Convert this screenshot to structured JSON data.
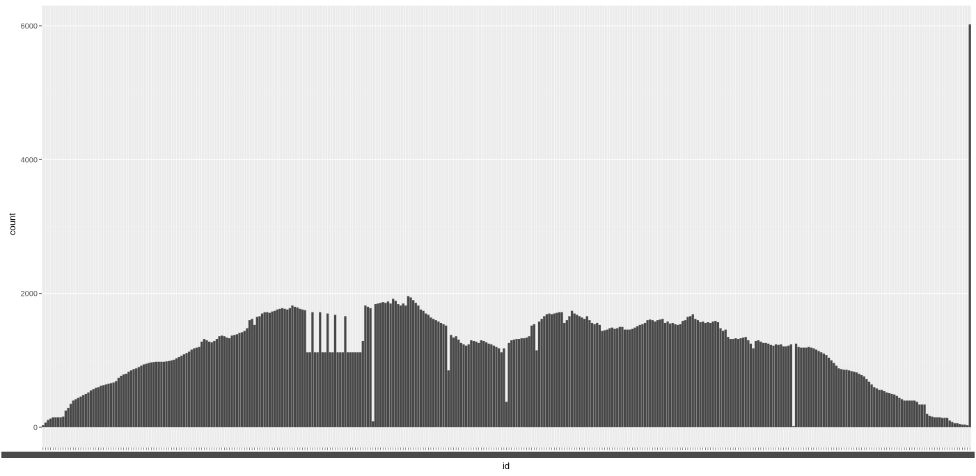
{
  "chart_data": {
    "type": "bar",
    "xlabel": "id",
    "ylabel": "count",
    "ylim": [
      0,
      6150
    ],
    "y_ticks": [
      0,
      2000,
      4000,
      6000
    ],
    "y_tick_labels": [
      "0",
      "2000",
      "4000",
      "6000"
    ],
    "x_tick_labels_note": "overlapping, illegible",
    "grid": true,
    "legend": "none",
    "colors": {
      "bar": "#474747",
      "panel": "#ebebeb",
      "grid_major": "#ffffff",
      "grid_minor": "#f2f2f2"
    },
    "values": [
      30,
      70,
      110,
      130,
      150,
      150,
      150,
      150,
      160,
      250,
      290,
      350,
      400,
      420,
      440,
      460,
      480,
      500,
      520,
      550,
      570,
      590,
      600,
      620,
      630,
      640,
      650,
      660,
      670,
      690,
      740,
      770,
      790,
      800,
      830,
      850,
      870,
      880,
      900,
      920,
      940,
      950,
      960,
      970,
      975,
      980,
      980,
      980,
      980,
      985,
      990,
      1000,
      1010,
      1030,
      1050,
      1070,
      1090,
      1110,
      1130,
      1160,
      1180,
      1190,
      1200,
      1280,
      1320,
      1300,
      1280,
      1270,
      1290,
      1320,
      1360,
      1370,
      1360,
      1340,
      1330,
      1370,
      1380,
      1390,
      1410,
      1420,
      1440,
      1480,
      1600,
      1620,
      1530,
      1650,
      1660,
      1700,
      1720,
      1720,
      1710,
      1730,
      1740,
      1760,
      1770,
      1780,
      1770,
      1760,
      1780,
      1820,
      1800,
      1790,
      1770,
      1760,
      1750,
      1120,
      1120,
      1720,
      1120,
      1120,
      1720,
      1120,
      1120,
      1700,
      1120,
      1120,
      1680,
      1120,
      1120,
      1120,
      1660,
      1120,
      1120,
      1120,
      1120,
      1120,
      1120,
      1290,
      1820,
      1800,
      1780,
      90,
      1840,
      1850,
      1860,
      1870,
      1860,
      1880,
      1850,
      1920,
      1890,
      1840,
      1820,
      1850,
      1820,
      1960,
      1940,
      1900,
      1860,
      1820,
      1760,
      1740,
      1700,
      1680,
      1640,
      1620,
      1600,
      1580,
      1560,
      1540,
      1520,
      850,
      1380,
      1340,
      1360,
      1310,
      1260,
      1240,
      1220,
      1240,
      1300,
      1290,
      1280,
      1260,
      1300,
      1290,
      1270,
      1250,
      1240,
      1220,
      1200,
      1180,
      1120,
      1180,
      380,
      1260,
      1300,
      1310,
      1320,
      1320,
      1330,
      1330,
      1340,
      1360,
      1520,
      1540,
      1150,
      1580,
      1620,
      1660,
      1690,
      1700,
      1690,
      1700,
      1710,
      1720,
      1720,
      1560,
      1600,
      1660,
      1740,
      1700,
      1680,
      1660,
      1640,
      1620,
      1660,
      1600,
      1560,
      1540,
      1560,
      1530,
      1440,
      1450,
      1460,
      1480,
      1490,
      1470,
      1480,
      1500,
      1500,
      1460,
      1460,
      1460,
      1470,
      1490,
      1510,
      1530,
      1540,
      1560,
      1600,
      1610,
      1600,
      1580,
      1600,
      1610,
      1620,
      1560,
      1580,
      1550,
      1560,
      1540,
      1530,
      1540,
      1590,
      1600,
      1650,
      1660,
      1690,
      1620,
      1600,
      1570,
      1580,
      1560,
      1570,
      1560,
      1580,
      1590,
      1570,
      1480,
      1440,
      1460,
      1350,
      1320,
      1320,
      1330,
      1320,
      1330,
      1340,
      1350,
      1300,
      1250,
      1180,
      1290,
      1300,
      1280,
      1260,
      1260,
      1250,
      1230,
      1220,
      1240,
      1230,
      1240,
      1210,
      1210,
      1220,
      1240,
      20,
      1250,
      1200,
      1190,
      1190,
      1190,
      1200,
      1190,
      1180,
      1160,
      1140,
      1120,
      1100,
      1080,
      1040,
      1000,
      960,
      920,
      880,
      870,
      860,
      860,
      850,
      840,
      830,
      820,
      800,
      780,
      760,
      720,
      680,
      640,
      600,
      580,
      560,
      560,
      540,
      520,
      510,
      500,
      490,
      470,
      440,
      420,
      400,
      400,
      400,
      400,
      400,
      380,
      340,
      340,
      340,
      200,
      170,
      160,
      150,
      150,
      150,
      140,
      140,
      140,
      100,
      80,
      60,
      60,
      50,
      40,
      40,
      30,
      6020
    ]
  }
}
